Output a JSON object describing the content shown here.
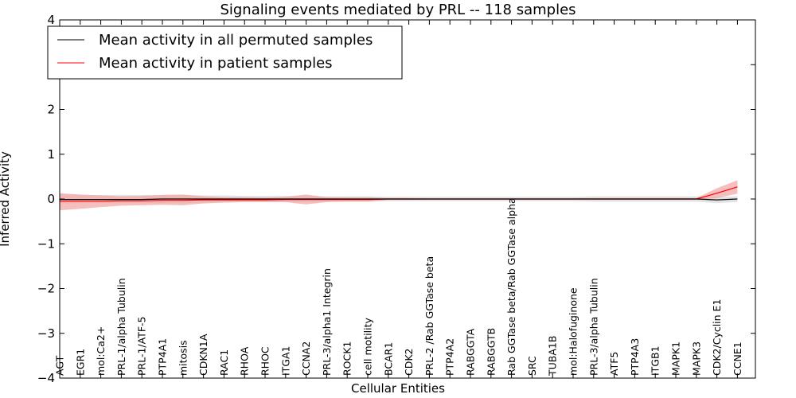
{
  "chart_data": {
    "type": "line",
    "title": "Signaling events mediated by PRL -- 118 samples",
    "xlabel": "Cellular Entities",
    "ylabel": "Inferred Activity",
    "ylim": [
      -4,
      4
    ],
    "yticks": [
      -4,
      -3,
      -2,
      -1,
      0,
      1,
      2,
      3,
      4
    ],
    "ytick_labels": [
      "−4",
      "−3",
      "−2",
      "−1",
      "0",
      "1",
      "2",
      "3",
      "4"
    ],
    "grid": false,
    "legend_position": "top-left",
    "categories": [
      "AGT",
      "EGR1",
      "mol:Ca2+",
      "PRL-1/alpha Tubulin",
      "PRL-1/ATF-5",
      "PTP4A1",
      "mitosis",
      "CDKN1A",
      "RAC1",
      "RHOA",
      "RHOC",
      "ITGA1",
      "CCNA2",
      "PRL-3/alpha1 Integrin",
      "ROCK1",
      "cell motility",
      "BCAR1",
      "CDK2",
      "PRL-2 /Rab GGTase beta",
      "PTP4A2",
      "RABGGTA",
      "RABGGTB",
      "Rab GGTase beta/Rab GGTase alpha",
      "SRC",
      "TUBA1B",
      "mol:Halofuginone",
      "PRL-3/alpha Tubulin",
      "ATF5",
      "PTP4A3",
      "ITGB1",
      "MAPK1",
      "MAPK3",
      "CDK2/Cyclin E1",
      "CCNE1"
    ],
    "series": [
      {
        "name": "Mean activity in all permuted samples",
        "color": "#000000",
        "band_color": "#d9d9d9",
        "values": [
          -0.01,
          -0.01,
          -0.01,
          -0.01,
          -0.01,
          0.0,
          0.0,
          0.0,
          0.0,
          0.0,
          0.0,
          0.0,
          0.0,
          0.0,
          0.0,
          0.0,
          0.0,
          0.0,
          0.0,
          0.0,
          0.0,
          0.0,
          0.0,
          0.0,
          0.0,
          0.0,
          0.0,
          0.0,
          0.0,
          0.0,
          0.0,
          0.0,
          -0.02,
          0.0
        ],
        "lower": [
          -0.1,
          -0.09,
          -0.09,
          -0.09,
          -0.09,
          -0.09,
          -0.09,
          -0.08,
          -0.08,
          -0.07,
          -0.07,
          -0.07,
          -0.07,
          -0.06,
          -0.06,
          -0.06,
          -0.05,
          -0.05,
          -0.05,
          -0.05,
          -0.05,
          -0.05,
          -0.05,
          -0.05,
          -0.05,
          -0.05,
          -0.06,
          -0.06,
          -0.06,
          -0.06,
          -0.06,
          -0.06,
          -0.09,
          -0.07
        ],
        "upper": [
          0.1,
          0.09,
          0.09,
          0.09,
          0.09,
          0.09,
          0.09,
          0.08,
          0.08,
          0.07,
          0.07,
          0.07,
          0.07,
          0.06,
          0.06,
          0.06,
          0.05,
          0.05,
          0.05,
          0.05,
          0.05,
          0.05,
          0.05,
          0.05,
          0.05,
          0.05,
          0.06,
          0.06,
          0.06,
          0.06,
          0.06,
          0.06,
          0.05,
          0.06
        ]
      },
      {
        "name": "Mean activity in patient samples",
        "color": "#ff0000",
        "band_color": "#f4a3a3",
        "values": [
          -0.05,
          -0.05,
          -0.05,
          -0.04,
          -0.04,
          -0.03,
          -0.03,
          -0.02,
          -0.02,
          -0.02,
          -0.02,
          -0.01,
          -0.01,
          -0.01,
          -0.01,
          -0.01,
          0.0,
          0.0,
          0.0,
          0.0,
          0.0,
          0.0,
          0.0,
          0.0,
          0.0,
          0.0,
          0.0,
          0.0,
          0.0,
          0.0,
          0.0,
          0.0,
          0.13,
          0.27
        ],
        "lower": [
          -0.25,
          -0.22,
          -0.18,
          -0.15,
          -0.14,
          -0.13,
          -0.14,
          -0.1,
          -0.08,
          -0.07,
          -0.07,
          -0.07,
          -0.12,
          -0.07,
          -0.06,
          -0.06,
          -0.02,
          -0.02,
          -0.01,
          -0.01,
          -0.01,
          -0.01,
          -0.01,
          -0.01,
          -0.01,
          -0.01,
          -0.01,
          -0.01,
          -0.01,
          -0.01,
          -0.01,
          -0.01,
          0.02,
          0.12
        ],
        "upper": [
          0.13,
          0.1,
          0.08,
          0.06,
          0.07,
          0.09,
          0.1,
          0.06,
          0.04,
          0.04,
          0.03,
          0.05,
          0.1,
          0.04,
          0.04,
          0.04,
          0.02,
          0.02,
          0.01,
          0.01,
          0.01,
          0.01,
          0.01,
          0.01,
          0.01,
          0.01,
          0.02,
          0.02,
          0.02,
          0.02,
          0.02,
          0.02,
          0.24,
          0.42
        ]
      }
    ]
  }
}
